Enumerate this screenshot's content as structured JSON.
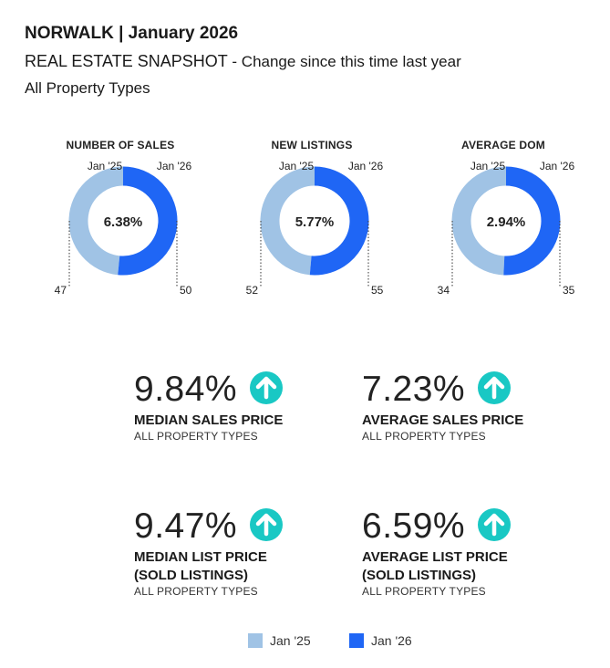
{
  "header": {
    "title": "NORWALK | January 2026",
    "snapshot": "REAL ESTATE SNAPSHOT",
    "change_note": "- Change since this time last year",
    "property_types": "All Property Types"
  },
  "colors": {
    "jan25": "#a0c3e5",
    "jan26": "#1f66f5",
    "arrow": "#19c8c4"
  },
  "chart_data": [
    {
      "type": "pie",
      "title": "NUMBER OF SALES",
      "left_label": "Jan '25",
      "right_label": "Jan '26",
      "center_label": "6.38%",
      "labels": [
        "Jan '25",
        "Jan '26"
      ],
      "values": [
        47,
        50
      ],
      "value_labels": [
        "47",
        "50"
      ]
    },
    {
      "type": "pie",
      "title": "NEW LISTINGS",
      "left_label": "Jan '25",
      "right_label": "Jan '26",
      "center_label": "5.77%",
      "labels": [
        "Jan '25",
        "Jan '26"
      ],
      "values": [
        52,
        55
      ],
      "value_labels": [
        "52",
        "55"
      ]
    },
    {
      "type": "pie",
      "title": "AVERAGE DOM",
      "left_label": "Jan '25",
      "right_label": "Jan '26",
      "center_label": "2.94%",
      "labels": [
        "Jan '25",
        "Jan '26"
      ],
      "values": [
        34,
        35
      ],
      "value_labels": [
        "34",
        "35"
      ]
    }
  ],
  "stats": [
    {
      "value": "9.84%",
      "label": "MEDIAN SALES PRICE",
      "label2": "",
      "sub": "ALL PROPERTY TYPES",
      "direction": "up-arrow-icon"
    },
    {
      "value": "7.23%",
      "label": "AVERAGE SALES PRICE",
      "label2": "",
      "sub": "ALL PROPERTY TYPES",
      "direction": "up-arrow-icon"
    },
    {
      "value": "9.47%",
      "label": "MEDIAN LIST PRICE",
      "label2": "(SOLD LISTINGS)",
      "sub": "ALL PROPERTY TYPES",
      "direction": "up-arrow-icon"
    },
    {
      "value": "6.59%",
      "label": "AVERAGE LIST PRICE",
      "label2": "(SOLD LISTINGS)",
      "sub": "ALL PROPERTY TYPES",
      "direction": "up-arrow-icon"
    }
  ],
  "legend": [
    {
      "label": "Jan '25",
      "color": "#a0c3e5"
    },
    {
      "label": "Jan '26",
      "color": "#1f66f5"
    }
  ]
}
